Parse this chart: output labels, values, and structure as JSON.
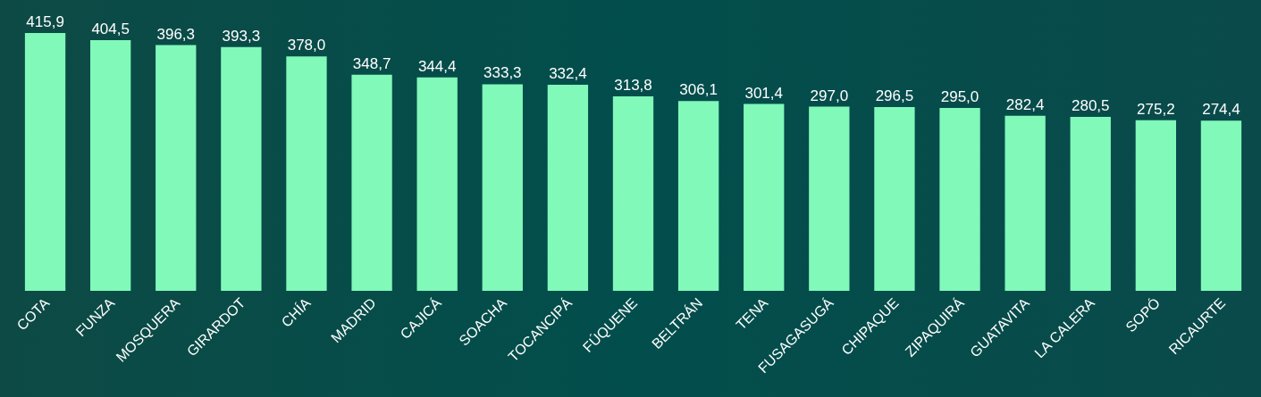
{
  "chart_data": {
    "type": "bar",
    "categories": [
      "COTA",
      "FUNZA",
      "MOSQUERA",
      "GIRARDOT",
      "CHÍA",
      "MADRID",
      "CAJICÁ",
      "SOACHA",
      "TOCANCIPÁ",
      "FÚQUENE",
      "BELTRÁN",
      "TENA",
      "FUSAGASUGÁ",
      "CHIPAQUE",
      "ZIPAQUIRÁ",
      "GUATAVITA",
      "LA CALERA",
      "SOPÓ",
      "RICAURTE"
    ],
    "values": [
      415.9,
      404.5,
      396.3,
      393.3,
      378.0,
      348.7,
      344.4,
      333.3,
      332.4,
      313.8,
      306.1,
      301.4,
      297.0,
      296.5,
      295.0,
      282.4,
      280.5,
      275.2,
      274.4
    ],
    "value_labels": [
      "415,9",
      "404,5",
      "396,3",
      "393,3",
      "378,0",
      "348,7",
      "344,4",
      "333,3",
      "332,4",
      "313,8",
      "306,1",
      "301,4",
      "297,0",
      "296,5",
      "295,0",
      "282,4",
      "280,5",
      "275,2",
      "274,4"
    ],
    "color": "#80f9b9",
    "grid": false
  }
}
